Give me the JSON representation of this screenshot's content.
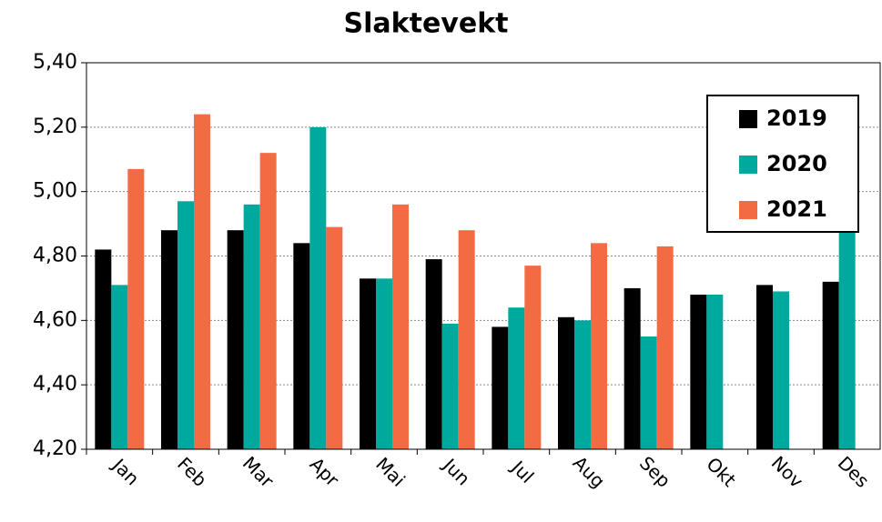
{
  "chart_data": {
    "type": "bar",
    "title": "Slaktevekt",
    "categories": [
      "Jan",
      "Feb",
      "Mar",
      "Apr",
      "Mai",
      "Jun",
      "Jul",
      "Aug",
      "Sep",
      "Okt",
      "Nov",
      "Des"
    ],
    "series": [
      {
        "name": "2019",
        "color": "#000000",
        "values": [
          4.82,
          4.88,
          4.88,
          4.84,
          4.73,
          4.79,
          4.58,
          4.61,
          4.7,
          4.68,
          4.71,
          4.72
        ]
      },
      {
        "name": "2020",
        "color": "#00a99d",
        "values": [
          4.71,
          4.97,
          4.96,
          5.2,
          4.73,
          4.59,
          4.64,
          4.6,
          4.55,
          4.68,
          4.69,
          4.9
        ]
      },
      {
        "name": "2021",
        "color": "#f26b43",
        "values": [
          5.07,
          5.24,
          5.12,
          4.89,
          4.96,
          4.88,
          4.77,
          4.84,
          4.83,
          null,
          null,
          null
        ]
      }
    ],
    "ylim": [
      4.2,
      5.4
    ],
    "yticks": [
      {
        "value": 4.2,
        "label": "4,20"
      },
      {
        "value": 4.4,
        "label": "4,40"
      },
      {
        "value": 4.6,
        "label": "4,60"
      },
      {
        "value": 4.8,
        "label": "4,80"
      },
      {
        "value": 5.0,
        "label": "5,00"
      },
      {
        "value": 5.2,
        "label": "5,20"
      },
      {
        "value": 5.4,
        "label": "5,40"
      }
    ],
    "grid": true,
    "legend": "upper right"
  }
}
